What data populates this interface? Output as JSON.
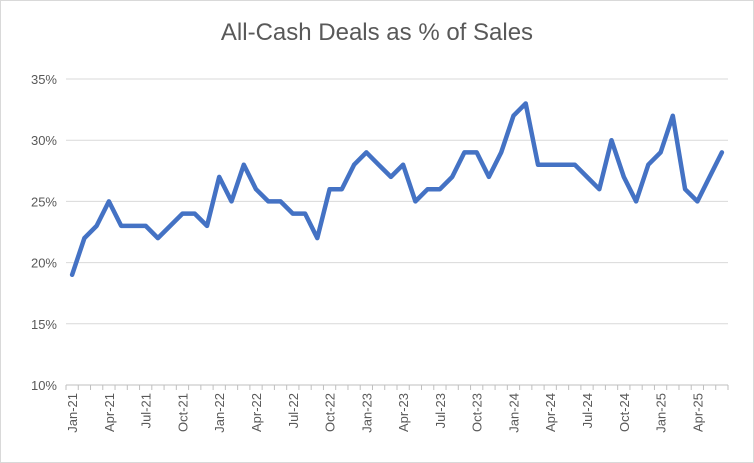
{
  "chart_data": {
    "type": "line",
    "title": "All-Cash Deals as % of Sales",
    "xlabel": "",
    "ylabel": "",
    "ylim": [
      10,
      35
    ],
    "yticks": [
      "10%",
      "15%",
      "20%",
      "25%",
      "30%",
      "35%"
    ],
    "grid": true,
    "legend": "none",
    "x": [
      "Jan-21",
      "Feb-21",
      "Mar-21",
      "Apr-21",
      "May-21",
      "Jun-21",
      "Jul-21",
      "Aug-21",
      "Sep-21",
      "Oct-21",
      "Nov-21",
      "Dec-21",
      "Jan-22",
      "Feb-22",
      "Mar-22",
      "Apr-22",
      "May-22",
      "Jun-22",
      "Jul-22",
      "Aug-22",
      "Sep-22",
      "Oct-22",
      "Nov-22",
      "Dec-22",
      "Jan-23",
      "Feb-23",
      "Mar-23",
      "Apr-23",
      "May-23",
      "Jun-23",
      "Jul-23",
      "Aug-23",
      "Sep-23",
      "Oct-23",
      "Nov-23",
      "Dec-23",
      "Jan-24",
      "Feb-24",
      "Mar-24",
      "Apr-24",
      "May-24",
      "Jun-24",
      "Jul-24",
      "Aug-24",
      "Sep-24",
      "Oct-24",
      "Nov-24",
      "Dec-24",
      "Jan-25",
      "Feb-25",
      "Mar-25",
      "Apr-25",
      "May-25",
      "Jun-25"
    ],
    "xtick_labels": [
      "Jan-21",
      "Apr-21",
      "Jul-21",
      "Oct-21",
      "Jan-22",
      "Apr-22",
      "Jul-22",
      "Oct-22",
      "Jan-23",
      "Apr-23",
      "Jul-23",
      "Oct-23",
      "Jan-24",
      "Apr-24",
      "Jul-24",
      "Oct-24",
      "Jan-25",
      "Apr-25"
    ],
    "series": [
      {
        "color": "#4472c4",
        "values": [
          19,
          22,
          23,
          25,
          23,
          23,
          23,
          22,
          23,
          24,
          24,
          23,
          27,
          25,
          28,
          26,
          25,
          25,
          24,
          24,
          22,
          26,
          26,
          28,
          29,
          28,
          27,
          28,
          25,
          26,
          26,
          27,
          29,
          29,
          27,
          29,
          32,
          33,
          28,
          28,
          28,
          28,
          27,
          26,
          30,
          27,
          25,
          28,
          29,
          32,
          26,
          25,
          27,
          29
        ]
      }
    ]
  }
}
